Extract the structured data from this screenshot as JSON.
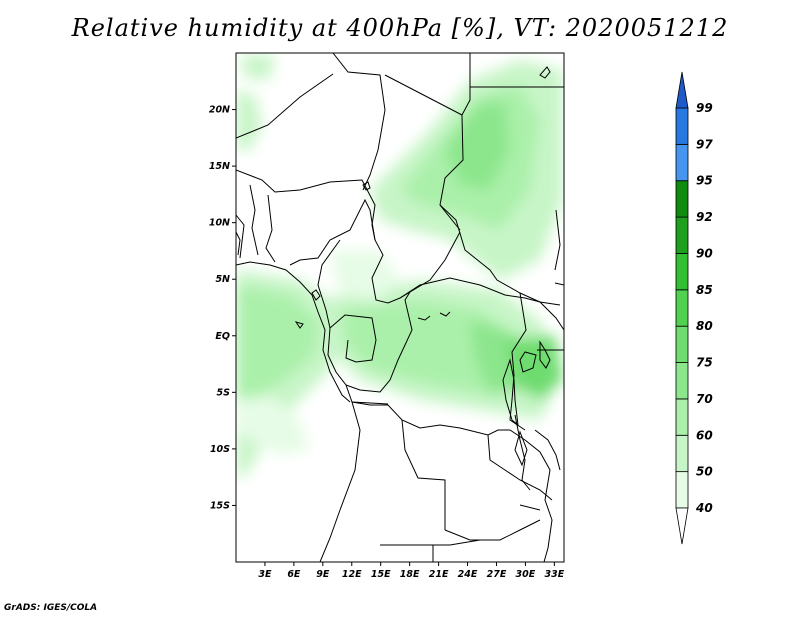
{
  "title": "Relative humidity at 400hPa [%], VT: 2020051212",
  "credit": "GrADS: IGES/COLA",
  "map": {
    "lon_range": [
      0,
      34
    ],
    "lat_range": [
      -20,
      25
    ],
    "lat_ticks": [
      {
        "value": 20,
        "label": "20N"
      },
      {
        "value": 15,
        "label": "15N"
      },
      {
        "value": 10,
        "label": "10N"
      },
      {
        "value": 5,
        "label": "5N"
      },
      {
        "value": 0,
        "label": "EQ"
      },
      {
        "value": -5,
        "label": "5S"
      },
      {
        "value": -10,
        "label": "10S"
      },
      {
        "value": -15,
        "label": "15S"
      }
    ],
    "lon_ticks": [
      {
        "value": 3,
        "label": "3E"
      },
      {
        "value": 6,
        "label": "6E"
      },
      {
        "value": 9,
        "label": "9E"
      },
      {
        "value": 12,
        "label": "12E"
      },
      {
        "value": 15,
        "label": "15E"
      },
      {
        "value": 18,
        "label": "18E"
      },
      {
        "value": 21,
        "label": "21E"
      },
      {
        "value": 24,
        "label": "24E"
      },
      {
        "value": 27,
        "label": "27E"
      },
      {
        "value": 30,
        "label": "30E"
      },
      {
        "value": 33,
        "label": "33E"
      }
    ]
  },
  "colorbar": {
    "levels": [
      {
        "label": "40",
        "color": "#e6fce6"
      },
      {
        "label": "50",
        "color": "#c8f5c8"
      },
      {
        "label": "60",
        "color": "#aaf0aa"
      },
      {
        "label": "70",
        "color": "#8ce68c"
      },
      {
        "label": "75",
        "color": "#6edc6e"
      },
      {
        "label": "80",
        "color": "#50d250"
      },
      {
        "label": "85",
        "color": "#32c032"
      },
      {
        "label": "90",
        "color": "#1ea01e"
      },
      {
        "label": "92",
        "color": "#0f8c0f"
      },
      {
        "label": "95",
        "color": "#4696f0"
      },
      {
        "label": "97",
        "color": "#2878e1"
      },
      {
        "label": "99",
        "color": "#1e5ac8"
      }
    ],
    "below_color": "#ffffff"
  }
}
